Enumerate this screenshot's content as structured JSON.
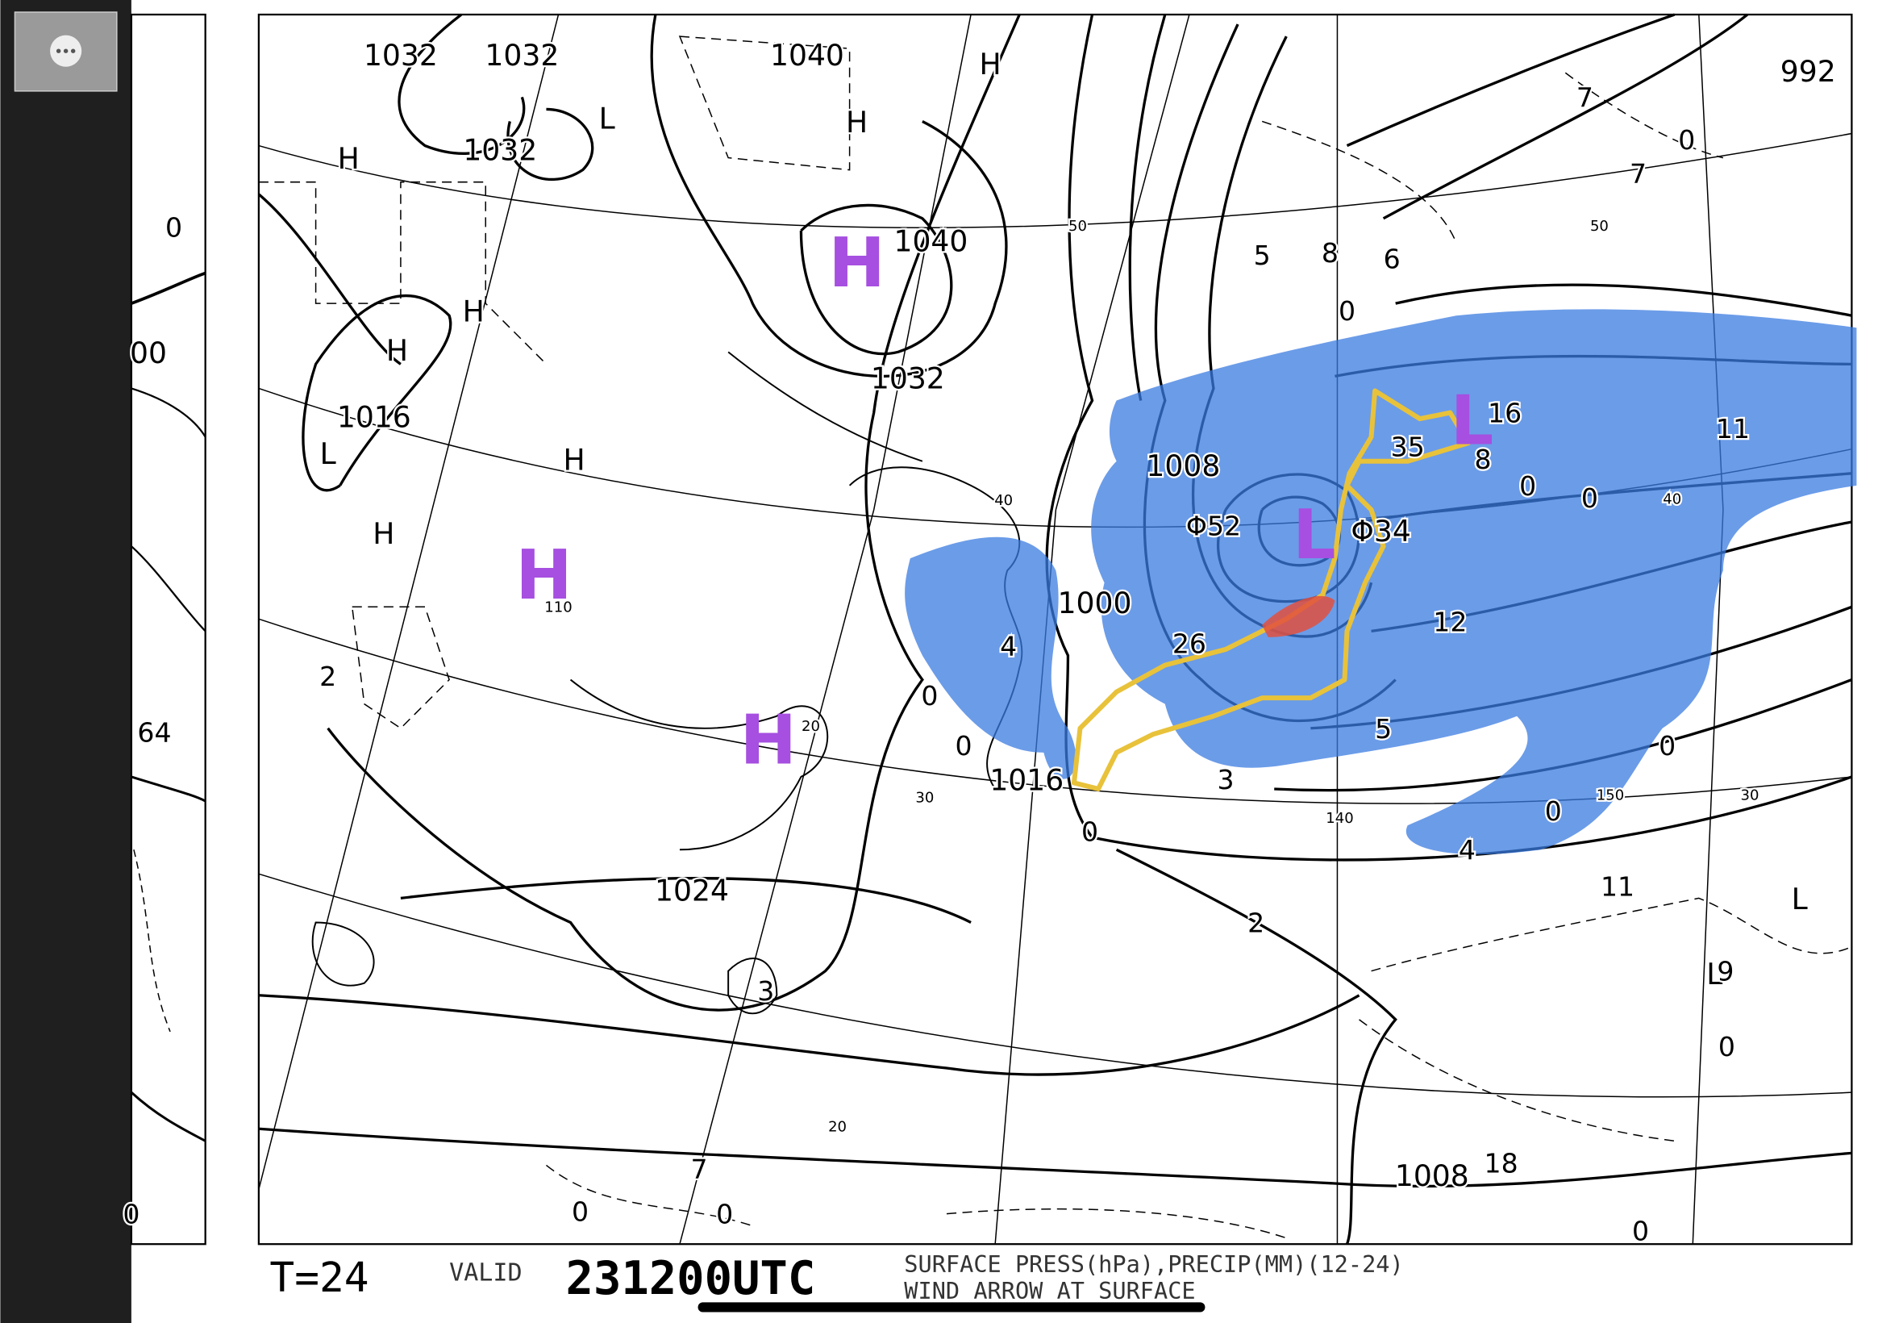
{
  "isobar_labels": [
    "1032",
    "1032",
    "1040",
    "1032",
    "1040",
    "1032",
    "1016",
    "1008",
    "1000",
    "1016",
    "1024",
    "1008",
    "992",
    "Φ34",
    "00"
  ],
  "highs": [
    "H",
    "H",
    "H",
    "H",
    "H",
    "H",
    "H"
  ],
  "lows": [
    "L",
    "L",
    "L",
    "L"
  ],
  "precip_amounts": [
    "0",
    "5",
    "8",
    "6",
    "0",
    "7",
    "7",
    "0",
    "11",
    "Φ52",
    "26",
    "4",
    "0",
    "0",
    "0",
    "3",
    "12",
    "5",
    "0",
    "0",
    "4",
    "11",
    "2",
    "3",
    "9",
    "0",
    "18",
    "0",
    "0",
    "0",
    "7",
    "2",
    "64",
    "0",
    "0",
    "0",
    "8",
    "35",
    "16"
  ],
  "graticule_labels": [
    "50",
    "50",
    "40",
    "40",
    "30",
    "30",
    "20",
    "20",
    "110",
    "140",
    "150"
  ],
  "annotations": {
    "highs": [
      "H",
      "H",
      "H"
    ],
    "lows": [
      "L",
      "L"
    ]
  },
  "footer": {
    "forecast_time": "T=24",
    "valid_label": "VALID",
    "valid_time": "231200UTC",
    "description_line1": "SURFACE PRESS(hPa),PRECIP(MM)(12-24)",
    "description_line2": "WIND ARROW AT SURFACE"
  }
}
